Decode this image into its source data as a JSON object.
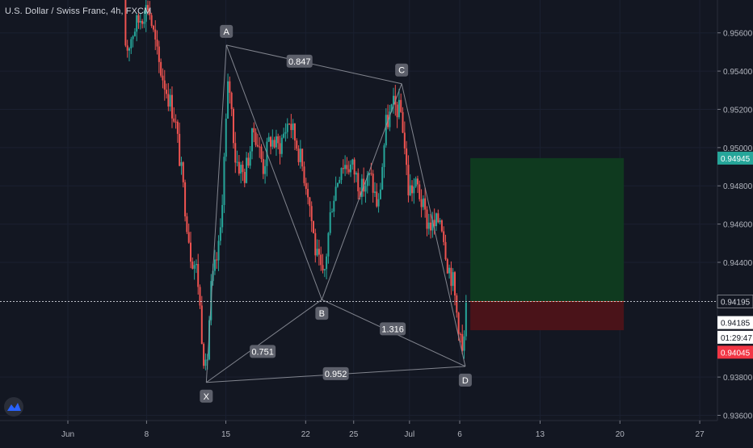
{
  "chart_title": "U.S. Dollar / Swiss Franc, 4h, FXCM",
  "colors": {
    "background": "#131722",
    "up": "#26a69a",
    "down": "#ef5350",
    "pattern_line": "#9598a1",
    "target_zone": "#0f3a1f",
    "stop_zone": "#4a1319",
    "target_tag": "#26a69a",
    "stop_tag": "#f23645"
  },
  "chart_data": {
    "type": "candlestick",
    "symbol": "U.S. Dollar / Swiss Franc",
    "interval": "4h",
    "source": "FXCM",
    "y_range": [
      0.9352,
      0.9575
    ],
    "y_ticks": [
      0.936,
      0.938,
      0.944,
      0.946,
      0.948,
      0.95,
      0.952,
      0.954,
      0.956
    ],
    "y_tick_labels": [
      "0.93600",
      "0.93800",
      "0.94400",
      "0.94600",
      "0.94800",
      "0.95000",
      "0.95200",
      "0.95400",
      "0.95600"
    ],
    "x_range": [
      0,
      80
    ],
    "x_ticks": [
      {
        "pos": 0,
        "label": "Jun"
      },
      {
        "pos": 7.05,
        "label": "8"
      },
      {
        "pos": 14.15,
        "label": "15"
      },
      {
        "pos": 21.3,
        "label": "22"
      },
      {
        "pos": 25.6,
        "label": "25"
      },
      {
        "pos": 30.6,
        "label": "Jul"
      },
      {
        "pos": 35.1,
        "label": "6"
      },
      {
        "pos": 42.3,
        "label": "13"
      },
      {
        "pos": 49.45,
        "label": "20"
      },
      {
        "pos": 56.6,
        "label": "27"
      }
    ],
    "candle_path": [
      {
        "x": 5.0,
        "y": 0.9578
      },
      {
        "x": 5.2,
        "y": 0.955
      },
      {
        "x": 5.9,
        "y": 0.9562
      },
      {
        "x": 7.2,
        "y": 0.9575
      },
      {
        "x": 8.1,
        "y": 0.9545
      },
      {
        "x": 9.6,
        "y": 0.9515
      },
      {
        "x": 10.4,
        "y": 0.9475
      },
      {
        "x": 11.0,
        "y": 0.9445
      },
      {
        "x": 11.6,
        "y": 0.9435
      },
      {
        "x": 12.1,
        "y": 0.9395
      },
      {
        "x": 12.4,
        "y": 0.938
      },
      {
        "x": 12.8,
        "y": 0.9425
      },
      {
        "x": 13.6,
        "y": 0.945
      },
      {
        "x": 14.4,
        "y": 0.9538
      },
      {
        "x": 15.0,
        "y": 0.9495
      },
      {
        "x": 15.8,
        "y": 0.9485
      },
      {
        "x": 16.7,
        "y": 0.951
      },
      {
        "x": 17.5,
        "y": 0.949
      },
      {
        "x": 18.1,
        "y": 0.9505
      },
      {
        "x": 18.9,
        "y": 0.95
      },
      {
        "x": 19.8,
        "y": 0.9515
      },
      {
        "x": 20.6,
        "y": 0.95
      },
      {
        "x": 21.5,
        "y": 0.9478
      },
      {
        "x": 22.2,
        "y": 0.9445
      },
      {
        "x": 22.9,
        "y": 0.943
      },
      {
        "x": 23.6,
        "y": 0.947
      },
      {
        "x": 24.5,
        "y": 0.9492
      },
      {
        "x": 25.5,
        "y": 0.949
      },
      {
        "x": 26.3,
        "y": 0.9478
      },
      {
        "x": 27.1,
        "y": 0.9485
      },
      {
        "x": 27.8,
        "y": 0.9468
      },
      {
        "x": 28.5,
        "y": 0.9512
      },
      {
        "x": 29.2,
        "y": 0.9522
      },
      {
        "x": 29.9,
        "y": 0.9518
      },
      {
        "x": 30.5,
        "y": 0.9478
      },
      {
        "x": 31.3,
        "y": 0.948
      },
      {
        "x": 32.1,
        "y": 0.9462
      },
      {
        "x": 32.8,
        "y": 0.9458
      },
      {
        "x": 33.4,
        "y": 0.9465
      },
      {
        "x": 34.0,
        "y": 0.944
      },
      {
        "x": 34.5,
        "y": 0.943
      },
      {
        "x": 34.8,
        "y": 0.9415
      },
      {
        "x": 35.1,
        "y": 0.9405
      },
      {
        "x": 35.4,
        "y": 0.9388
      },
      {
        "x": 35.6,
        "y": 0.9412
      },
      {
        "x": 35.8,
        "y": 0.942
      }
    ],
    "pattern": {
      "points": [
        {
          "label": "X",
          "x": 12.4,
          "y": 0.93772
        },
        {
          "label": "A",
          "x": 14.2,
          "y": 0.95536
        },
        {
          "label": "B",
          "x": 22.75,
          "y": 0.94205
        },
        {
          "label": "C",
          "x": 29.9,
          "y": 0.95334
        },
        {
          "label": "D",
          "x": 35.6,
          "y": 0.93856
        }
      ],
      "ratios": [
        {
          "value": "0.847",
          "x": 20.75,
          "y": 0.95452
        },
        {
          "value": "0.751",
          "x": 17.45,
          "y": 0.93934
        },
        {
          "value": "1.316",
          "x": 29.1,
          "y": 0.94052
        },
        {
          "value": "0.952",
          "x": 24.0,
          "y": 0.93818
        }
      ]
    },
    "position": {
      "x_start": 36.05,
      "x_end": 49.8,
      "target": 0.94945,
      "entry": 0.94195,
      "stop": 0.94045
    },
    "price_tags": [
      {
        "value": "0.94945",
        "y": 0.94945,
        "kind": "target"
      },
      {
        "value": "0.94195",
        "y": 0.94195,
        "kind": "crosshair"
      },
      {
        "value": "0.94185",
        "y": 0.94085,
        "kind": "last"
      },
      {
        "value": "01:29:47",
        "y": 0.94008,
        "kind": "countdown"
      },
      {
        "value": "0.94045",
        "y": 0.9393,
        "kind": "stop"
      }
    ]
  }
}
